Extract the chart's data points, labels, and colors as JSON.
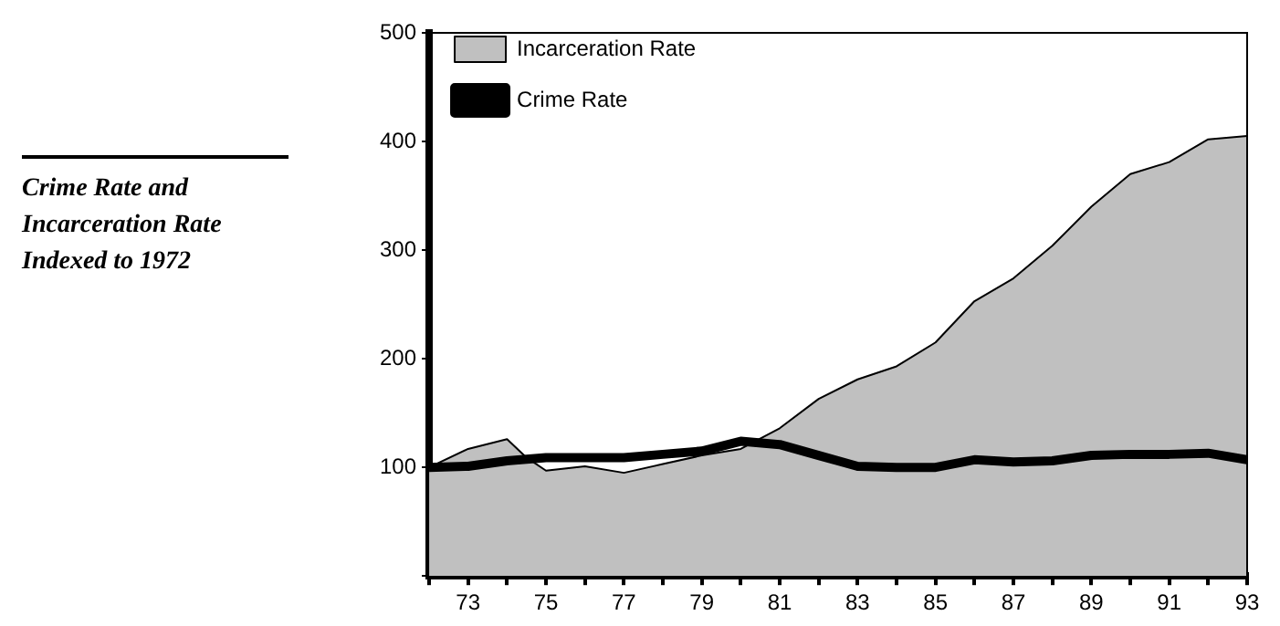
{
  "chart_data": {
    "type": "area",
    "title": "Crime Rate and Incarceration Rate Indexed to 1972",
    "x": [
      72,
      73,
      74,
      75,
      76,
      77,
      78,
      79,
      80,
      81,
      82,
      83,
      84,
      85,
      86,
      87,
      88,
      89,
      90,
      91,
      92,
      93
    ],
    "series": [
      {
        "name": "Incarceration Rate",
        "color": "#c0c0c0",
        "x": [
          72,
          73,
          74,
          74.5,
          75,
          76,
          77,
          78,
          79,
          80,
          81,
          82,
          83,
          84,
          85,
          86,
          87,
          88,
          89,
          90,
          91,
          92,
          93
        ],
        "values": [
          100,
          117,
          126,
          109,
          97,
          101,
          95,
          103,
          111,
          117,
          136,
          163,
          181,
          193,
          215,
          253,
          274,
          304,
          340,
          370,
          381,
          402,
          405
        ]
      },
      {
        "name": "Crime Rate",
        "type": "line",
        "color": "#000000",
        "values": [
          100,
          101,
          106,
          109,
          109,
          109,
          112,
          115,
          124,
          121,
          111,
          101,
          100,
          100,
          107,
          105,
          106,
          111,
          112,
          112,
          113,
          107
        ]
      }
    ],
    "xlim": [
      72,
      93
    ],
    "xticks": [
      {
        "value": 72,
        "label": null
      },
      73,
      {
        "value": 74,
        "label": null
      },
      75,
      {
        "value": 76,
        "label": null
      },
      77,
      {
        "value": 78,
        "label": null
      },
      79,
      {
        "value": 80,
        "label": null
      },
      81,
      {
        "value": 82,
        "label": null
      },
      83,
      {
        "value": 84,
        "label": null
      },
      85,
      {
        "value": 86,
        "label": null
      },
      87,
      {
        "value": 88,
        "label": null
      },
      89,
      {
        "value": 90,
        "label": null
      },
      91,
      {
        "value": 92,
        "label": null
      },
      93
    ],
    "ylim": [
      0,
      500
    ],
    "yticks": [
      {
        "value": 0,
        "label": null
      },
      100,
      200,
      300,
      400,
      500
    ],
    "grid": false,
    "legend": "top left",
    "marker": "none"
  }
}
